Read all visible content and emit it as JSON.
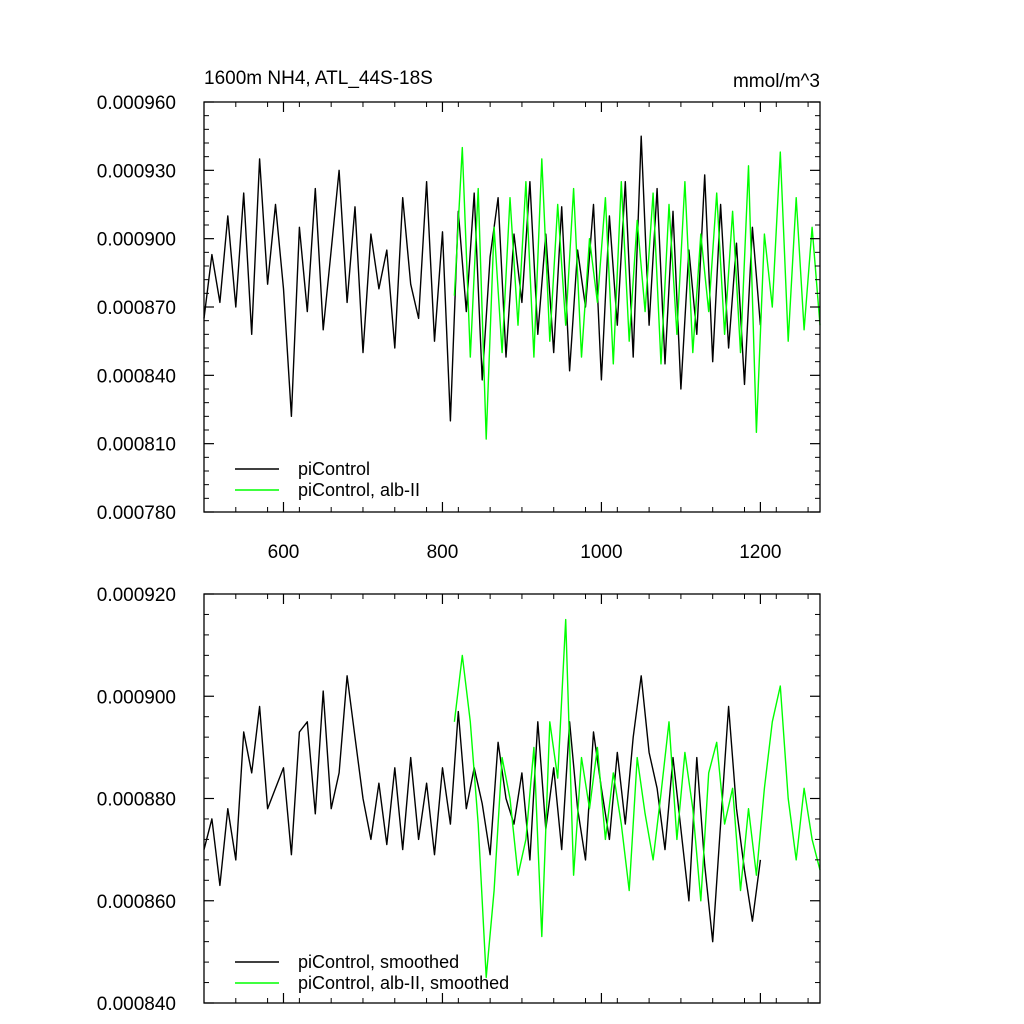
{
  "chart_data": [
    {
      "type": "line",
      "title": "1600m NH4, ATL_44S-18S",
      "units": "mmol/m^3",
      "xlim": [
        500,
        1275
      ],
      "ylim": [
        0.00078,
        0.00096
      ],
      "xticks": [
        600,
        800,
        1000,
        1200
      ],
      "xtick_labels": [
        "600",
        "800",
        "1000",
        "1200"
      ],
      "yticks": [
        0.00078,
        0.00081,
        0.00084,
        0.00087,
        0.0009,
        0.00093,
        0.00096
      ],
      "ytick_labels": [
        "0.000780",
        "0.000810",
        "0.000840",
        "0.000870",
        "0.000900",
        "0.000930",
        "0.000960"
      ],
      "legend_position": "bottom-left",
      "grid": false,
      "series": [
        {
          "name": "piControl",
          "color": "#000000",
          "x": [
            500,
            510,
            520,
            530,
            540,
            550,
            560,
            570,
            580,
            590,
            600,
            610,
            620,
            630,
            640,
            650,
            660,
            670,
            680,
            690,
            700,
            710,
            720,
            730,
            740,
            750,
            760,
            770,
            780,
            790,
            800,
            810,
            820,
            830,
            840,
            850,
            860,
            870,
            880,
            890,
            900,
            910,
            920,
            930,
            940,
            950,
            960,
            970,
            980,
            990,
            1000,
            1010,
            1020,
            1030,
            1040,
            1050,
            1060,
            1070,
            1080,
            1090,
            1100,
            1110,
            1120,
            1130,
            1140,
            1150,
            1160,
            1170,
            1180,
            1190,
            1200
          ],
          "y": [
            0.000865,
            0.000893,
            0.000872,
            0.00091,
            0.00087,
            0.00092,
            0.000858,
            0.000935,
            0.00088,
            0.000915,
            0.000878,
            0.000822,
            0.000905,
            0.000868,
            0.000922,
            0.00086,
            0.000895,
            0.00093,
            0.000872,
            0.000914,
            0.00085,
            0.000902,
            0.000878,
            0.000895,
            0.000852,
            0.000918,
            0.00088,
            0.000865,
            0.000925,
            0.000855,
            0.000903,
            0.00082,
            0.000912,
            0.000868,
            0.00092,
            0.000838,
            0.000892,
            0.000918,
            0.000848,
            0.000902,
            0.000872,
            0.000925,
            0.000858,
            0.000902,
            0.00085,
            0.000914,
            0.000842,
            0.000895,
            0.00087,
            0.000915,
            0.000838,
            0.00091,
            0.000862,
            0.000925,
            0.000848,
            0.000945,
            0.000862,
            0.000922,
            0.000845,
            0.000912,
            0.000834,
            0.000895,
            0.000858,
            0.000928,
            0.000846,
            0.000915,
            0.000852,
            0.000898,
            0.000836,
            0.000905,
            0.000862
          ]
        },
        {
          "name": "piControl, alb-II",
          "color": "#00ff00",
          "x": [
            815,
            825,
            835,
            845,
            855,
            865,
            875,
            885,
            895,
            905,
            915,
            925,
            935,
            945,
            955,
            965,
            975,
            985,
            995,
            1005,
            1015,
            1025,
            1035,
            1045,
            1055,
            1065,
            1075,
            1085,
            1095,
            1105,
            1115,
            1125,
            1135,
            1145,
            1155,
            1165,
            1175,
            1185,
            1195,
            1205,
            1215,
            1225,
            1235,
            1245,
            1255,
            1265,
            1275
          ],
          "y": [
            0.000875,
            0.00094,
            0.000848,
            0.000922,
            0.000812,
            0.000905,
            0.00085,
            0.000918,
            0.000862,
            0.000925,
            0.000848,
            0.000935,
            0.000855,
            0.000915,
            0.000862,
            0.000922,
            0.000848,
            0.0009,
            0.000872,
            0.000918,
            0.000845,
            0.000925,
            0.000855,
            0.000908,
            0.000868,
            0.00092,
            0.000845,
            0.000915,
            0.000858,
            0.000925,
            0.00085,
            0.000902,
            0.000868,
            0.00092,
            0.000858,
            0.000912,
            0.00085,
            0.000932,
            0.000815,
            0.000902,
            0.00087,
            0.000938,
            0.000855,
            0.000918,
            0.00086,
            0.000905,
            0.000862
          ]
        }
      ]
    },
    {
      "type": "line",
      "xlim": [
        500,
        1275
      ],
      "ylim": [
        0.00084,
        0.00092
      ],
      "xticks": [
        600,
        800,
        1000,
        1200
      ],
      "yticks": [
        0.00084,
        0.00086,
        0.00088,
        0.0009,
        0.00092
      ],
      "ytick_labels": [
        "0.000840",
        "0.000860",
        "0.000880",
        "0.000900",
        "0.000920"
      ],
      "legend_position": "bottom-left",
      "grid": false,
      "series": [
        {
          "name": "piControl, smoothed",
          "color": "#000000",
          "x": [
            500,
            510,
            520,
            530,
            540,
            550,
            560,
            570,
            580,
            590,
            600,
            610,
            620,
            630,
            640,
            650,
            660,
            670,
            680,
            690,
            700,
            710,
            720,
            730,
            740,
            750,
            760,
            770,
            780,
            790,
            800,
            810,
            820,
            830,
            840,
            850,
            860,
            870,
            880,
            890,
            900,
            910,
            920,
            930,
            940,
            950,
            960,
            970,
            980,
            990,
            1000,
            1010,
            1020,
            1030,
            1040,
            1050,
            1060,
            1070,
            1080,
            1090,
            1100,
            1110,
            1120,
            1130,
            1140,
            1150,
            1160,
            1170,
            1180,
            1190,
            1200
          ],
          "y": [
            0.00087,
            0.000876,
            0.000863,
            0.000878,
            0.000868,
            0.000893,
            0.000885,
            0.000898,
            0.000878,
            0.000882,
            0.000886,
            0.000869,
            0.000893,
            0.000895,
            0.000877,
            0.000901,
            0.000878,
            0.000885,
            0.000904,
            0.000892,
            0.00088,
            0.000872,
            0.000883,
            0.000871,
            0.000886,
            0.00087,
            0.000888,
            0.000872,
            0.000883,
            0.000869,
            0.000886,
            0.000875,
            0.000897,
            0.000878,
            0.000886,
            0.000879,
            0.000869,
            0.000891,
            0.00088,
            0.000875,
            0.000885,
            0.000868,
            0.000895,
            0.000874,
            0.000886,
            0.00087,
            0.000895,
            0.000878,
            0.000868,
            0.000893,
            0.000882,
            0.000872,
            0.000889,
            0.000875,
            0.000892,
            0.000904,
            0.000889,
            0.000882,
            0.00087,
            0.000888,
            0.000874,
            0.00086,
            0.000888,
            0.000867,
            0.000852,
            0.000875,
            0.000898,
            0.000878,
            0.000866,
            0.000856,
            0.000868
          ]
        },
        {
          "name": "piControl, alb-II, smoothed",
          "color": "#00ff00",
          "x": [
            815,
            825,
            835,
            845,
            855,
            865,
            875,
            885,
            895,
            905,
            915,
            925,
            935,
            945,
            955,
            965,
            975,
            985,
            995,
            1005,
            1015,
            1025,
            1035,
            1045,
            1055,
            1065,
            1075,
            1085,
            1095,
            1105,
            1115,
            1125,
            1135,
            1145,
            1155,
            1165,
            1175,
            1185,
            1195,
            1205,
            1215,
            1225,
            1235,
            1245,
            1255,
            1265,
            1275
          ],
          "y": [
            0.000895,
            0.000908,
            0.000895,
            0.000875,
            0.000845,
            0.000862,
            0.000888,
            0.00088,
            0.000865,
            0.000872,
            0.00089,
            0.000853,
            0.000895,
            0.000884,
            0.000915,
            0.000865,
            0.000888,
            0.000878,
            0.00089,
            0.000872,
            0.000885,
            0.000875,
            0.000862,
            0.000888,
            0.000877,
            0.000868,
            0.000881,
            0.000895,
            0.000872,
            0.000889,
            0.000878,
            0.00086,
            0.000885,
            0.000891,
            0.000875,
            0.000882,
            0.000862,
            0.000878,
            0.000865,
            0.000882,
            0.000895,
            0.000902,
            0.00088,
            0.000868,
            0.000882,
            0.000872,
            0.000866
          ]
        }
      ]
    }
  ]
}
